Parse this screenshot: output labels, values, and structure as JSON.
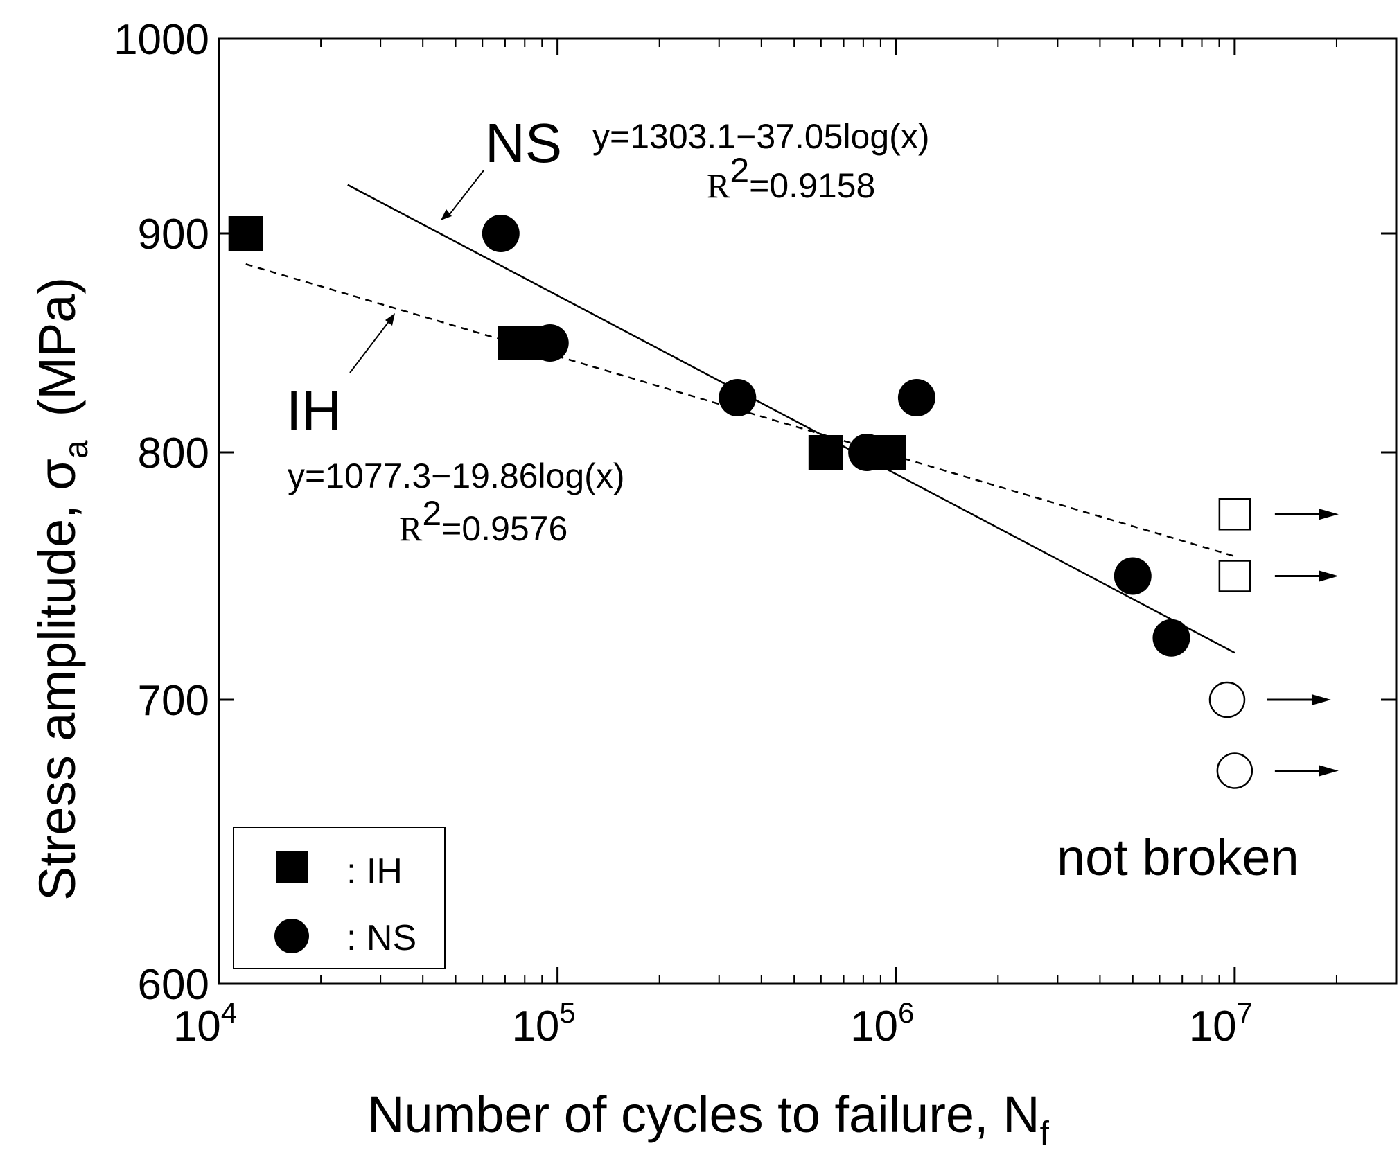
{
  "chart_data": {
    "type": "scatter",
    "xscale": "log",
    "xlim": [
      10000,
      30000000
    ],
    "ylim": [
      600,
      1000
    ],
    "xlabel_main": "Number of cycles to failure, N",
    "xlabel_sub": "f",
    "ylabel_main": "Stress amplitude, σ",
    "ylabel_sub": "a",
    "ylabel_unit": "(MPa)",
    "x_ticks": [
      {
        "value": 10000,
        "base": "10",
        "exp": "4"
      },
      {
        "value": 100000,
        "base": "10",
        "exp": "5"
      },
      {
        "value": 1000000,
        "base": "10",
        "exp": "6"
      },
      {
        "value": 10000000,
        "base": "10",
        "exp": "7"
      }
    ],
    "y_ticks": [
      {
        "value": 600,
        "label": "600"
      },
      {
        "value": 700,
        "label": "700"
      },
      {
        "value": 800,
        "label": "800"
      },
      {
        "value": 900,
        "label": "900"
      },
      {
        "value": 1000,
        "label": "1000"
      }
    ],
    "series": [
      {
        "name": "IH",
        "marker": "square",
        "points": [
          {
            "x": 12000,
            "y": 900
          },
          {
            "x": 75000,
            "y": 850
          },
          {
            "x": 80000,
            "y": 850
          },
          {
            "x": 620000,
            "y": 800
          },
          {
            "x": 950000,
            "y": 800
          }
        ],
        "not_broken": [
          {
            "x": 10000000,
            "y": 775
          },
          {
            "x": 10000000,
            "y": 750
          }
        ]
      },
      {
        "name": "NS",
        "marker": "circle",
        "points": [
          {
            "x": 68000,
            "y": 900
          },
          {
            "x": 95000,
            "y": 850
          },
          {
            "x": 340000,
            "y": 825
          },
          {
            "x": 1150000,
            "y": 825
          },
          {
            "x": 820000,
            "y": 800
          },
          {
            "x": 5000000,
            "y": 750
          },
          {
            "x": 6500000,
            "y": 725
          }
        ],
        "not_broken": [
          {
            "x": 9500000,
            "y": 700
          },
          {
            "x": 10000000,
            "y": 675
          }
        ]
      }
    ],
    "fits": [
      {
        "series": "NS",
        "style": "solid",
        "x_range": [
          24000,
          10000000
        ],
        "y_range": [
          925,
          719
        ],
        "label": "NS",
        "equation": "y=1303.1−37.05log(x)",
        "r2_prefix": "R",
        "r2_sup": "2",
        "r2_value": "=0.9158"
      },
      {
        "series": "IH",
        "style": "dashed",
        "x_range": [
          12000,
          10000000
        ],
        "y_range": [
          886,
          758
        ],
        "label": "IH",
        "equation": "y=1077.3−19.86log(x)",
        "r2_prefix": "R",
        "r2_sup": "2",
        "r2_value": "=0.9576"
      }
    ],
    "legend": {
      "placement": "bottom-left",
      "entries": [
        {
          "marker": "square",
          "text": ": IH"
        },
        {
          "marker": "circle",
          "text": ": NS"
        }
      ]
    },
    "annotation_not_broken": "not broken"
  }
}
